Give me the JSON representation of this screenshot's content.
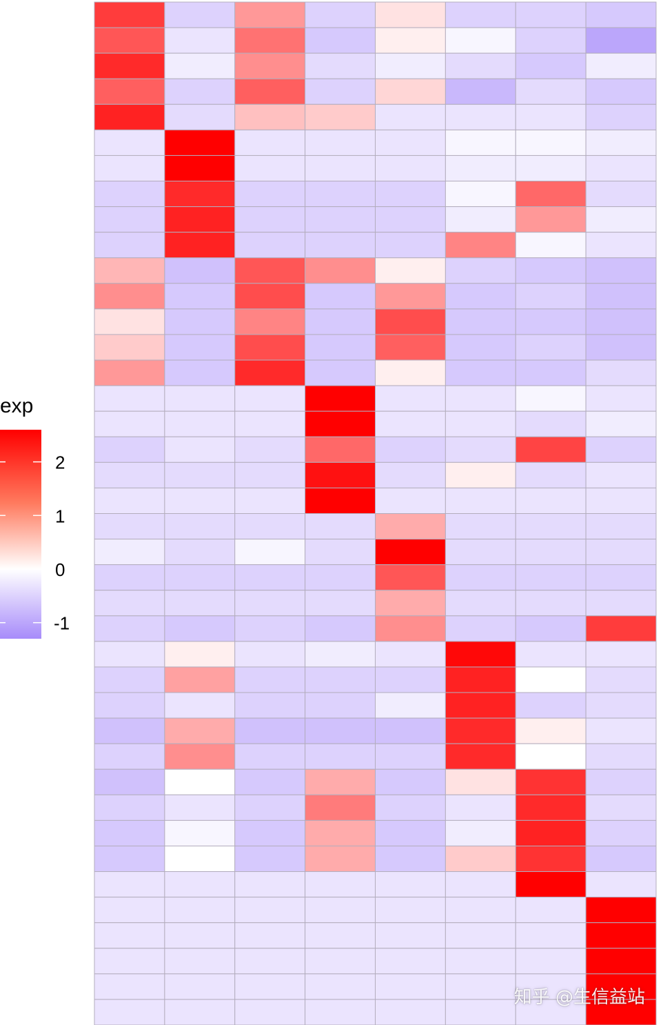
{
  "chart_data": {
    "type": "heatmap",
    "legend": {
      "title": "exp",
      "ticks": [
        2,
        1,
        0,
        -1
      ],
      "range": [
        -1.3,
        2.6
      ],
      "colors": {
        "low": "#a78bfa",
        "mid": "#ffffff",
        "high": "#ff0000"
      }
    },
    "n_columns": 8,
    "n_rows": 40,
    "values": [
      [
        1.9,
        -0.5,
        0.9,
        -0.5,
        0.2,
        -0.5,
        -0.5,
        -0.6
      ],
      [
        1.6,
        -0.3,
        1.3,
        -0.6,
        0.1,
        -0.1,
        -0.5,
        -1.0
      ],
      [
        2.1,
        -0.2,
        1.0,
        -0.4,
        -0.2,
        -0.4,
        -0.6,
        -0.2
      ],
      [
        1.5,
        -0.5,
        1.5,
        -0.5,
        0.3,
        -0.8,
        -0.4,
        -0.6
      ],
      [
        2.2,
        -0.4,
        0.5,
        0.4,
        -0.3,
        -0.3,
        -0.3,
        -0.5
      ],
      [
        -0.3,
        2.6,
        -0.3,
        -0.3,
        -0.3,
        -0.1,
        -0.1,
        -0.2
      ],
      [
        -0.3,
        2.6,
        -0.3,
        -0.3,
        -0.3,
        -0.2,
        -0.2,
        -0.3
      ],
      [
        -0.5,
        2.1,
        -0.5,
        -0.5,
        -0.5,
        -0.1,
        1.4,
        -0.4
      ],
      [
        -0.5,
        2.2,
        -0.5,
        -0.5,
        -0.5,
        -0.2,
        0.9,
        -0.2
      ],
      [
        -0.5,
        2.2,
        -0.5,
        -0.5,
        -0.5,
        1.1,
        -0.1,
        -0.3
      ],
      [
        0.6,
        -0.7,
        1.6,
        1.0,
        0.1,
        -0.5,
        -0.6,
        -0.7
      ],
      [
        1.0,
        -0.6,
        1.7,
        -0.6,
        0.9,
        -0.6,
        -0.5,
        -0.7
      ],
      [
        0.2,
        -0.6,
        1.1,
        -0.6,
        1.7,
        -0.6,
        -0.6,
        -0.7
      ],
      [
        0.4,
        -0.6,
        1.7,
        -0.6,
        1.5,
        -0.6,
        -0.5,
        -0.7
      ],
      [
        0.9,
        -0.6,
        2.1,
        -0.6,
        0.1,
        -0.6,
        -0.6,
        -0.4
      ],
      [
        -0.3,
        -0.3,
        -0.3,
        2.6,
        -0.3,
        -0.3,
        -0.1,
        -0.3
      ],
      [
        -0.3,
        -0.3,
        -0.3,
        2.6,
        -0.3,
        -0.3,
        -0.4,
        -0.2
      ],
      [
        -0.5,
        -0.3,
        -0.4,
        1.4,
        -0.5,
        -0.4,
        1.8,
        -0.5
      ],
      [
        -0.4,
        -0.4,
        -0.4,
        2.4,
        -0.4,
        0.1,
        -0.4,
        -0.3
      ],
      [
        -0.3,
        -0.3,
        -0.3,
        2.6,
        -0.3,
        -0.3,
        -0.3,
        -0.3
      ],
      [
        -0.4,
        -0.4,
        -0.4,
        -0.4,
        0.7,
        -0.4,
        -0.4,
        -0.4
      ],
      [
        -0.2,
        -0.4,
        -0.1,
        -0.4,
        2.6,
        -0.4,
        -0.4,
        -0.4
      ],
      [
        -0.5,
        -0.5,
        -0.5,
        -0.5,
        1.6,
        -0.5,
        -0.5,
        -0.5
      ],
      [
        -0.4,
        -0.4,
        -0.4,
        -0.4,
        0.7,
        -0.4,
        -0.4,
        -0.4
      ],
      [
        -0.5,
        -0.6,
        -0.5,
        -0.6,
        1.0,
        -0.5,
        -0.6,
        1.9
      ],
      [
        -0.3,
        0.1,
        -0.3,
        -0.2,
        -0.3,
        2.5,
        -0.3,
        -0.3
      ],
      [
        -0.5,
        0.8,
        -0.5,
        -0.5,
        -0.5,
        2.2,
        0.0,
        -0.4
      ],
      [
        -0.5,
        -0.3,
        -0.5,
        -0.5,
        -0.2,
        2.2,
        -0.5,
        -0.4
      ],
      [
        -0.7,
        0.7,
        -0.7,
        -0.7,
        -0.7,
        2.1,
        0.1,
        -0.3
      ],
      [
        -0.5,
        1.0,
        -0.5,
        -0.5,
        -0.5,
        2.1,
        0.0,
        -0.4
      ],
      [
        -0.7,
        0.0,
        -0.6,
        0.7,
        -0.6,
        0.2,
        2.0,
        -0.5
      ],
      [
        -0.5,
        -0.3,
        -0.5,
        1.2,
        -0.5,
        -0.3,
        2.1,
        -0.4
      ],
      [
        -0.6,
        -0.1,
        -0.6,
        0.7,
        -0.6,
        -0.2,
        2.2,
        -0.5
      ],
      [
        -0.6,
        0.0,
        -0.6,
        0.7,
        -0.6,
        0.4,
        2.0,
        -0.6
      ],
      [
        -0.3,
        -0.3,
        -0.3,
        -0.3,
        -0.3,
        -0.3,
        2.6,
        -0.3
      ],
      [
        -0.3,
        -0.3,
        -0.3,
        -0.3,
        -0.3,
        -0.3,
        -0.3,
        2.6
      ],
      [
        -0.3,
        -0.3,
        -0.3,
        -0.3,
        -0.3,
        -0.3,
        -0.3,
        2.6
      ],
      [
        -0.3,
        -0.3,
        -0.3,
        -0.3,
        -0.3,
        -0.3,
        -0.3,
        2.6
      ],
      [
        -0.3,
        -0.3,
        -0.3,
        -0.3,
        -0.3,
        -0.3,
        -0.3,
        2.6
      ],
      [
        -0.3,
        -0.3,
        -0.3,
        -0.3,
        -0.3,
        -0.3,
        -0.3,
        2.6
      ]
    ]
  },
  "watermark": "知乎 @生信益站"
}
